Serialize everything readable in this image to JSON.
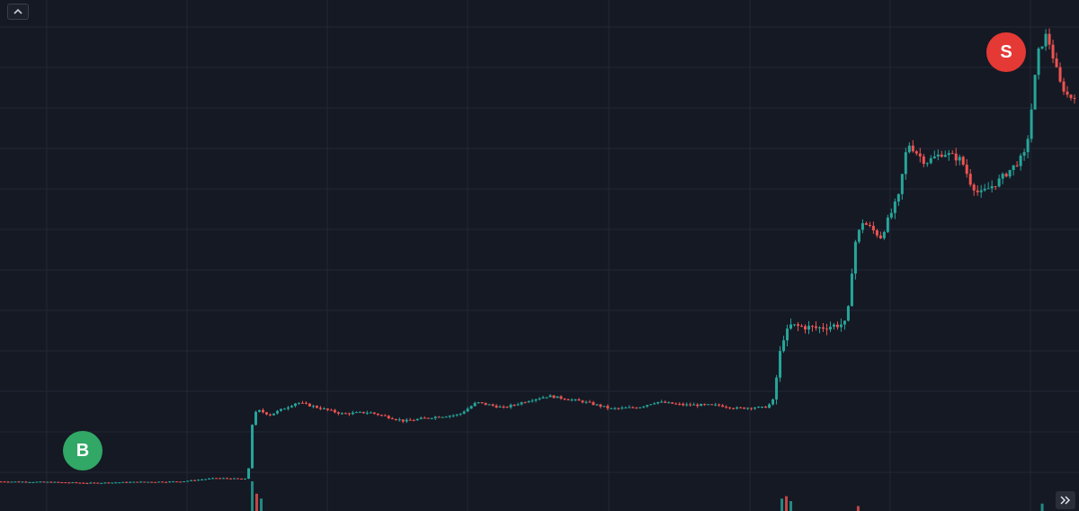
{
  "colors": {
    "background": "#151924",
    "grid": "#232734",
    "up": "#26a69a",
    "down": "#ef5350",
    "buy_marker": "#31a865",
    "sell_marker": "#e53935"
  },
  "icons": {
    "collapse": "chevron-up-icon",
    "scroll": "double-chevron-right-icon"
  },
  "chart_data": {
    "type": "candlestick",
    "grid": true,
    "x_axis_visible": false,
    "y_axis_visible": false,
    "x_range": [
      0,
      240
    ],
    "y_range": [
      0,
      100
    ],
    "price_path": [
      [
        0,
        4.5
      ],
      [
        10,
        4.4
      ],
      [
        20,
        4.2
      ],
      [
        30,
        4.4
      ],
      [
        40,
        4.5
      ],
      [
        48,
        5.2
      ],
      [
        55,
        5.0
      ],
      [
        56,
        16.0
      ],
      [
        57,
        19.0
      ],
      [
        60,
        18.0
      ],
      [
        66,
        20.5
      ],
      [
        70,
        19.6
      ],
      [
        76,
        18.2
      ],
      [
        82,
        18.5
      ],
      [
        90,
        16.7
      ],
      [
        96,
        17.5
      ],
      [
        102,
        18.0
      ],
      [
        106,
        20.5
      ],
      [
        112,
        19.4
      ],
      [
        118,
        21.0
      ],
      [
        122,
        21.8
      ],
      [
        130,
        20.6
      ],
      [
        136,
        19.2
      ],
      [
        142,
        19.5
      ],
      [
        146,
        20.6
      ],
      [
        152,
        20.0
      ],
      [
        160,
        19.9
      ],
      [
        164,
        19.3
      ],
      [
        168,
        19.5
      ],
      [
        170,
        19.4
      ],
      [
        172,
        20.5
      ],
      [
        174,
        33.0
      ],
      [
        176,
        36.0
      ],
      [
        182,
        35.5
      ],
      [
        188,
        36.4
      ],
      [
        189,
        40.0
      ],
      [
        190,
        52.0
      ],
      [
        192,
        57.0
      ],
      [
        196,
        54.0
      ],
      [
        200,
        62.0
      ],
      [
        202,
        73.0
      ],
      [
        206,
        69.0
      ],
      [
        210,
        71.0
      ],
      [
        214,
        69.5
      ],
      [
        216,
        65.0
      ],
      [
        218,
        62.5
      ],
      [
        222,
        65.0
      ],
      [
        226,
        68.5
      ],
      [
        228,
        70.5
      ],
      [
        229,
        75.0
      ],
      [
        231,
        91.0
      ],
      [
        233,
        95.0
      ],
      [
        236,
        85.0
      ],
      [
        238,
        82.0
      ],
      [
        240,
        83.0
      ]
    ],
    "volume_spikes": [
      {
        "x": 56,
        "value": 6.0
      },
      {
        "x": 57,
        "value": 3.5
      },
      {
        "x": 58,
        "value": 2.5
      },
      {
        "x": 174,
        "value": 2.5
      },
      {
        "x": 175,
        "value": 3.0
      },
      {
        "x": 176,
        "value": 2.0
      },
      {
        "x": 191,
        "value": 1.0
      },
      {
        "x": 232,
        "value": 1.5
      }
    ],
    "markers": [
      {
        "label": "B",
        "side": "buy",
        "x": 18,
        "y": 13
      },
      {
        "label": "S",
        "side": "sell",
        "x": 223,
        "y": 93
      }
    ]
  },
  "buttons": {
    "collapse_label": "",
    "scroll_label": ""
  }
}
